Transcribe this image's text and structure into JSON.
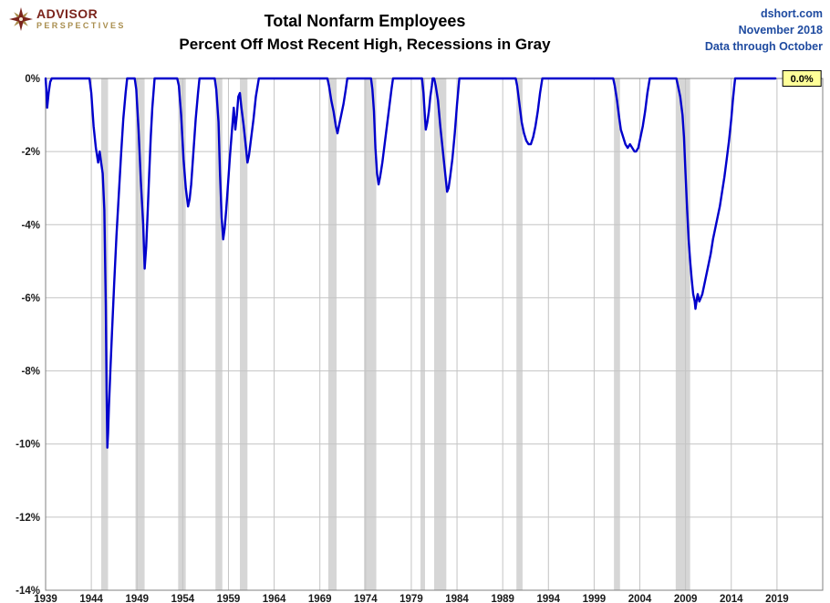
{
  "header": {
    "logo": {
      "line1": "ADVISOR",
      "line2": "PERSPECTIVES"
    },
    "title": "Total Nonfarm Employees",
    "subtitle": "Percent Off Most Recent High, Recessions in Gray",
    "source": [
      "dshort.com",
      "November 2018",
      "Data through October"
    ]
  },
  "chart_data": {
    "type": "line",
    "title": "Total Nonfarm Employees",
    "subtitle": "Percent Off Most Recent High, Recessions in Gray",
    "xlabel": "",
    "ylabel": "",
    "xlim": [
      1939,
      2024
    ],
    "ylim": [
      -14,
      0
    ],
    "grid": true,
    "x_ticks": [
      1939,
      1944,
      1949,
      1954,
      1959,
      1964,
      1969,
      1974,
      1979,
      1984,
      1989,
      1994,
      1999,
      2004,
      2009,
      2014,
      2019
    ],
    "y_ticks": [
      0,
      -2,
      -4,
      -6,
      -8,
      -10,
      -12,
      -14
    ],
    "y_tick_labels": [
      "0%",
      "-2%",
      "-4%",
      "-6%",
      "-8%",
      "-10%",
      "-12%",
      "-14%"
    ],
    "end_label": "0.0%",
    "colors": {
      "line": "#0000CC",
      "recession_band": "#D6D6D6",
      "grid": "#C4C4C4",
      "axis": "#808080",
      "tick_text": "#1a1a1a",
      "end_label_fill": "#FFFF99",
      "end_label_border": "#000000"
    },
    "recessions": [
      [
        1945.08,
        1945.83
      ],
      [
        1948.83,
        1949.83
      ],
      [
        1953.5,
        1954.33
      ],
      [
        1957.58,
        1958.33
      ],
      [
        1960.25,
        1961.08
      ],
      [
        1969.92,
        1970.83
      ],
      [
        1973.83,
        1975.17
      ],
      [
        1980.0,
        1980.5
      ],
      [
        1981.5,
        1982.83
      ],
      [
        1990.5,
        1991.17
      ],
      [
        2001.17,
        2001.83
      ],
      [
        2007.92,
        2009.5
      ]
    ],
    "series": [
      {
        "name": "Percent off most recent high",
        "points": [
          [
            1939.0,
            0
          ],
          [
            1939.08,
            -0.3
          ],
          [
            1939.17,
            -0.8
          ],
          [
            1939.33,
            -0.4
          ],
          [
            1939.5,
            -0.1
          ],
          [
            1939.67,
            0
          ],
          [
            1940.5,
            0
          ],
          [
            1941.0,
            0
          ],
          [
            1942.0,
            0
          ],
          [
            1943.0,
            0
          ],
          [
            1943.8,
            0
          ],
          [
            1944.0,
            -0.4
          ],
          [
            1944.25,
            -1.3
          ],
          [
            1944.5,
            -1.9
          ],
          [
            1944.75,
            -2.3
          ],
          [
            1944.92,
            -2.0
          ],
          [
            1945.08,
            -2.3
          ],
          [
            1945.25,
            -2.6
          ],
          [
            1945.42,
            -3.6
          ],
          [
            1945.58,
            -6.2
          ],
          [
            1945.67,
            -8.6
          ],
          [
            1945.75,
            -10.1
          ],
          [
            1945.83,
            -9.7
          ],
          [
            1945.92,
            -9.0
          ],
          [
            1946.08,
            -8.0
          ],
          [
            1946.25,
            -7.0
          ],
          [
            1946.5,
            -5.6
          ],
          [
            1946.75,
            -4.3
          ],
          [
            1947.0,
            -3.2
          ],
          [
            1947.25,
            -2.1
          ],
          [
            1947.5,
            -1.1
          ],
          [
            1947.75,
            -0.4
          ],
          [
            1947.92,
            0
          ],
          [
            1948.25,
            0
          ],
          [
            1948.75,
            0
          ],
          [
            1948.92,
            -0.3
          ],
          [
            1949.17,
            -1.4
          ],
          [
            1949.42,
            -2.8
          ],
          [
            1949.67,
            -4.0
          ],
          [
            1949.83,
            -5.2
          ],
          [
            1950.0,
            -4.6
          ],
          [
            1950.17,
            -3.6
          ],
          [
            1950.33,
            -2.6
          ],
          [
            1950.5,
            -1.6
          ],
          [
            1950.67,
            -0.8
          ],
          [
            1950.92,
            0
          ],
          [
            1951.5,
            0
          ],
          [
            1952.5,
            0
          ],
          [
            1953.4,
            0
          ],
          [
            1953.58,
            -0.2
          ],
          [
            1953.83,
            -1.0
          ],
          [
            1954.08,
            -2.2
          ],
          [
            1954.33,
            -3.0
          ],
          [
            1954.58,
            -3.5
          ],
          [
            1954.75,
            -3.3
          ],
          [
            1954.92,
            -2.9
          ],
          [
            1955.17,
            -2.0
          ],
          [
            1955.42,
            -1.1
          ],
          [
            1955.67,
            -0.4
          ],
          [
            1955.83,
            0
          ],
          [
            1956.5,
            0
          ],
          [
            1957.5,
            0
          ],
          [
            1957.67,
            -0.3
          ],
          [
            1957.92,
            -1.2
          ],
          [
            1958.08,
            -2.6
          ],
          [
            1958.25,
            -3.8
          ],
          [
            1958.42,
            -4.4
          ],
          [
            1958.58,
            -4.1
          ],
          [
            1958.75,
            -3.6
          ],
          [
            1958.92,
            -3.0
          ],
          [
            1959.17,
            -2.1
          ],
          [
            1959.42,
            -1.3
          ],
          [
            1959.58,
            -0.8
          ],
          [
            1959.75,
            -1.4
          ],
          [
            1959.92,
            -1.0
          ],
          [
            1960.08,
            -0.5
          ],
          [
            1960.25,
            -0.4
          ],
          [
            1960.42,
            -0.8
          ],
          [
            1960.67,
            -1.3
          ],
          [
            1960.92,
            -1.9
          ],
          [
            1961.08,
            -2.3
          ],
          [
            1961.25,
            -2.1
          ],
          [
            1961.5,
            -1.6
          ],
          [
            1961.75,
            -1.1
          ],
          [
            1962.0,
            -0.5
          ],
          [
            1962.33,
            0
          ],
          [
            1963.0,
            0
          ],
          [
            1964.0,
            0
          ],
          [
            1965.0,
            0
          ],
          [
            1966.0,
            0
          ],
          [
            1967.0,
            0
          ],
          [
            1968.0,
            0
          ],
          [
            1969.0,
            0
          ],
          [
            1969.83,
            0
          ],
          [
            1970.0,
            -0.2
          ],
          [
            1970.25,
            -0.6
          ],
          [
            1970.5,
            -0.9
          ],
          [
            1970.75,
            -1.3
          ],
          [
            1970.92,
            -1.5
          ],
          [
            1971.08,
            -1.3
          ],
          [
            1971.33,
            -1.0
          ],
          [
            1971.58,
            -0.7
          ],
          [
            1971.83,
            -0.3
          ],
          [
            1972.0,
            0
          ],
          [
            1972.5,
            0
          ],
          [
            1973.5,
            0
          ],
          [
            1974.6,
            0
          ],
          [
            1974.75,
            -0.3
          ],
          [
            1974.92,
            -0.9
          ],
          [
            1975.08,
            -1.9
          ],
          [
            1975.25,
            -2.6
          ],
          [
            1975.42,
            -2.9
          ],
          [
            1975.58,
            -2.7
          ],
          [
            1975.83,
            -2.3
          ],
          [
            1976.08,
            -1.8
          ],
          [
            1976.33,
            -1.3
          ],
          [
            1976.58,
            -0.8
          ],
          [
            1976.83,
            -0.3
          ],
          [
            1977.0,
            0
          ],
          [
            1977.5,
            0
          ],
          [
            1978.5,
            0
          ],
          [
            1979.5,
            0
          ],
          [
            1980.17,
            0
          ],
          [
            1980.33,
            -0.4
          ],
          [
            1980.5,
            -1.1
          ],
          [
            1980.58,
            -1.4
          ],
          [
            1980.75,
            -1.2
          ],
          [
            1980.92,
            -0.9
          ],
          [
            1981.08,
            -0.5
          ],
          [
            1981.25,
            -0.2
          ],
          [
            1981.33,
            0
          ],
          [
            1981.5,
            0
          ],
          [
            1981.67,
            -0.2
          ],
          [
            1981.92,
            -0.6
          ],
          [
            1982.17,
            -1.3
          ],
          [
            1982.42,
            -1.9
          ],
          [
            1982.67,
            -2.5
          ],
          [
            1982.92,
            -3.1
          ],
          [
            1983.08,
            -3.0
          ],
          [
            1983.25,
            -2.7
          ],
          [
            1983.5,
            -2.2
          ],
          [
            1983.75,
            -1.5
          ],
          [
            1984.0,
            -0.7
          ],
          [
            1984.25,
            0
          ],
          [
            1985.0,
            0
          ],
          [
            1986.0,
            0
          ],
          [
            1987.0,
            0
          ],
          [
            1988.0,
            0
          ],
          [
            1989.0,
            0
          ],
          [
            1990.42,
            0
          ],
          [
            1990.58,
            -0.2
          ],
          [
            1990.83,
            -0.7
          ],
          [
            1991.08,
            -1.2
          ],
          [
            1991.33,
            -1.5
          ],
          [
            1991.58,
            -1.7
          ],
          [
            1991.83,
            -1.8
          ],
          [
            1992.08,
            -1.8
          ],
          [
            1992.33,
            -1.6
          ],
          [
            1992.58,
            -1.3
          ],
          [
            1992.83,
            -0.9
          ],
          [
            1993.08,
            -0.4
          ],
          [
            1993.33,
            0
          ],
          [
            1994.0,
            0
          ],
          [
            1995.0,
            0
          ],
          [
            1996.0,
            0
          ],
          [
            1997.0,
            0
          ],
          [
            1998.0,
            0
          ],
          [
            1999.0,
            0
          ],
          [
            2000.0,
            0
          ],
          [
            2001.08,
            0
          ],
          [
            2001.25,
            -0.2
          ],
          [
            2001.5,
            -0.6
          ],
          [
            2001.75,
            -1.1
          ],
          [
            2001.92,
            -1.4
          ],
          [
            2002.17,
            -1.6
          ],
          [
            2002.42,
            -1.8
          ],
          [
            2002.67,
            -1.9
          ],
          [
            2002.92,
            -1.8
          ],
          [
            2003.17,
            -1.9
          ],
          [
            2003.42,
            -2.0
          ],
          [
            2003.58,
            -2.0
          ],
          [
            2003.83,
            -1.9
          ],
          [
            2004.08,
            -1.6
          ],
          [
            2004.33,
            -1.3
          ],
          [
            2004.58,
            -0.9
          ],
          [
            2004.83,
            -0.4
          ],
          [
            2005.08,
            0
          ],
          [
            2005.5,
            0
          ],
          [
            2006.5,
            0
          ],
          [
            2007.5,
            0
          ],
          [
            2008.0,
            0
          ],
          [
            2008.17,
            -0.2
          ],
          [
            2008.42,
            -0.5
          ],
          [
            2008.67,
            -1.0
          ],
          [
            2008.83,
            -1.6
          ],
          [
            2009.0,
            -2.6
          ],
          [
            2009.17,
            -3.6
          ],
          [
            2009.33,
            -4.4
          ],
          [
            2009.5,
            -5.0
          ],
          [
            2009.67,
            -5.5
          ],
          [
            2009.83,
            -5.9
          ],
          [
            2010.0,
            -6.1
          ],
          [
            2010.08,
            -6.3
          ],
          [
            2010.25,
            -6.0
          ],
          [
            2010.33,
            -5.9
          ],
          [
            2010.5,
            -6.1
          ],
          [
            2010.67,
            -6.0
          ],
          [
            2010.83,
            -5.9
          ],
          [
            2011.0,
            -5.7
          ],
          [
            2011.25,
            -5.4
          ],
          [
            2011.5,
            -5.1
          ],
          [
            2011.75,
            -4.8
          ],
          [
            2012.0,
            -4.4
          ],
          [
            2012.25,
            -4.1
          ],
          [
            2012.5,
            -3.8
          ],
          [
            2012.75,
            -3.5
          ],
          [
            2013.0,
            -3.1
          ],
          [
            2013.25,
            -2.7
          ],
          [
            2013.5,
            -2.2
          ],
          [
            2013.75,
            -1.7
          ],
          [
            2014.0,
            -1.1
          ],
          [
            2014.17,
            -0.6
          ],
          [
            2014.33,
            -0.2
          ],
          [
            2014.42,
            0
          ],
          [
            2015.0,
            0
          ],
          [
            2016.0,
            0
          ],
          [
            2017.0,
            0
          ],
          [
            2018.0,
            0
          ],
          [
            2018.83,
            0
          ]
        ]
      }
    ]
  }
}
